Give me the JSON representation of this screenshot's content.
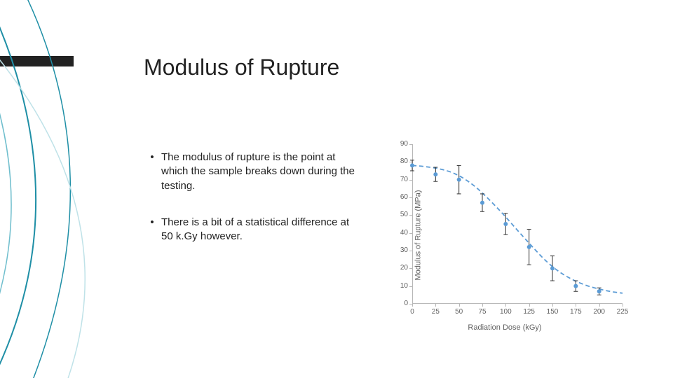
{
  "title": "Modulus of Rupture",
  "bullets": [
    "The modulus of rupture is the point at which the sample breaks down during the testing.",
    "There is a bit of a statistical difference at 50 k.Gy however."
  ],
  "decor": {
    "rect_color": "#222222",
    "swoosh_colors": [
      "#1f8fa6",
      "#5fb6c7",
      "#1f8fa6",
      "#a7d6df"
    ]
  },
  "chart": {
    "type": "scatter",
    "xlabel": "Radiation Dose (kGy)",
    "ylabel": "Modulus of Rupture (MPa)",
    "xlim": [
      0,
      225
    ],
    "ylim": [
      0,
      90
    ],
    "xtick_step": 25,
    "ytick_step": 10,
    "tick_fontsize": 10,
    "label_fontsize": 11,
    "tick_color": "#606060",
    "axis_color": "#b8b8b8",
    "marker_color": "#5b9bd5",
    "marker_size": 6,
    "errorbar_color": "#333333",
    "trend_color": "#5b9bd5",
    "trend_dash": "6,4",
    "background_color": "#ffffff",
    "points": [
      {
        "x": 0,
        "y": 78,
        "err": 3
      },
      {
        "x": 25,
        "y": 73,
        "err": 4
      },
      {
        "x": 50,
        "y": 70,
        "err": 8
      },
      {
        "x": 75,
        "y": 57,
        "err": 5
      },
      {
        "x": 100,
        "y": 45,
        "err": 6
      },
      {
        "x": 125,
        "y": 32,
        "err": 10
      },
      {
        "x": 150,
        "y": 20,
        "err": 7
      },
      {
        "x": 175,
        "y": 10,
        "err": 3
      },
      {
        "x": 200,
        "y": 7,
        "err": 2
      }
    ],
    "trend_bezier": [
      [
        0,
        78
      ],
      [
        30,
        77
      ],
      [
        60,
        70
      ],
      [
        90,
        55
      ],
      [
        120,
        37
      ],
      [
        150,
        20
      ],
      [
        180,
        11
      ],
      [
        210,
        7
      ],
      [
        225,
        6
      ]
    ]
  }
}
